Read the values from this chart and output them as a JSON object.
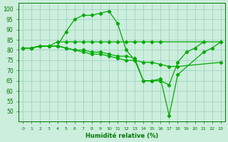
{
  "xlabel": "Humidité relative (%)",
  "background_color": "#cceedd",
  "grid_color": "#99ccbb",
  "line_color": "#00aa00",
  "xlim": [
    -0.5,
    23.5
  ],
  "ylim": [
    45,
    103
  ],
  "xticks": [
    0,
    1,
    2,
    3,
    4,
    5,
    6,
    7,
    8,
    9,
    10,
    11,
    12,
    13,
    14,
    15,
    16,
    17,
    18,
    19,
    20,
    21,
    22,
    23
  ],
  "yticks": [
    50,
    55,
    60,
    65,
    70,
    75,
    80,
    85,
    90,
    95,
    100
  ],
  "series": [
    {
      "x": [
        0,
        1,
        2,
        3,
        4,
        5,
        6,
        7,
        8,
        9,
        10,
        11,
        12,
        13,
        14,
        15,
        16,
        17,
        18,
        19,
        20,
        21,
        22,
        23
      ],
      "y": [
        81,
        81,
        82,
        82,
        82,
        89,
        95,
        97,
        97,
        98,
        99,
        93,
        80,
        75,
        65,
        65,
        65,
        63,
        74,
        79,
        81,
        84,
        null,
        null
      ]
    },
    {
      "x": [
        0,
        1,
        2,
        3,
        4,
        5,
        6,
        7,
        8,
        9,
        10,
        11,
        12,
        13,
        14,
        15,
        16,
        17,
        18,
        19,
        20,
        21,
        22,
        23
      ],
      "y": [
        81,
        81,
        82,
        82,
        84,
        84,
        84,
        84,
        84,
        84,
        84,
        84,
        84,
        84,
        84,
        84,
        84,
        null,
        null,
        null,
        null,
        null,
        null,
        84
      ]
    },
    {
      "x": [
        0,
        1,
        2,
        3,
        4,
        5,
        6,
        7,
        8,
        9,
        10,
        11,
        12,
        13,
        14,
        15,
        16,
        17,
        18,
        19,
        20,
        21,
        22,
        23
      ],
      "y": [
        81,
        81,
        82,
        82,
        82,
        81,
        80,
        79,
        78,
        78,
        77,
        76,
        75,
        75,
        74,
        74,
        73,
        72,
        72,
        null,
        null,
        null,
        null,
        74
      ]
    },
    {
      "x": [
        0,
        1,
        2,
        3,
        4,
        5,
        6,
        7,
        8,
        9,
        10,
        11,
        12,
        13,
        14,
        15,
        16,
        17,
        18,
        19,
        20,
        21,
        22,
        23
      ],
      "y": [
        81,
        81,
        82,
        82,
        82,
        81,
        80,
        80,
        79,
        79,
        78,
        77,
        77,
        76,
        65,
        65,
        66,
        48,
        68,
        null,
        null,
        79,
        81,
        84
      ]
    }
  ]
}
